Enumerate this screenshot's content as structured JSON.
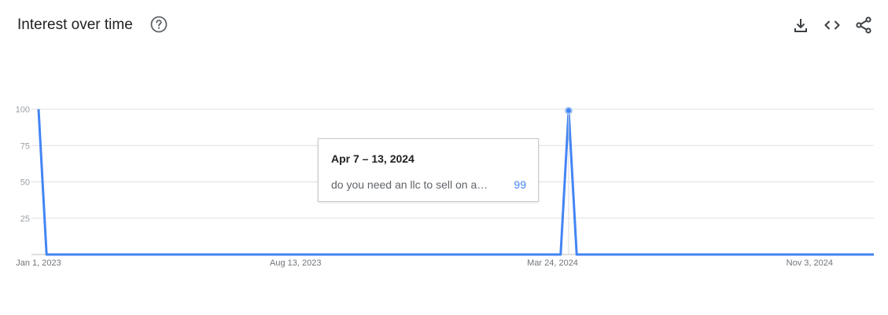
{
  "header": {
    "title": "Interest over time",
    "help_icon": "help-circle-icon",
    "actions": [
      {
        "name": "download",
        "icon": "download-icon"
      },
      {
        "name": "embed",
        "icon": "code-icon"
      },
      {
        "name": "share",
        "icon": "share-icon"
      }
    ]
  },
  "chart_data": {
    "type": "line",
    "title": "",
    "xlabel": "",
    "ylabel": "",
    "ylim": [
      0,
      100
    ],
    "yticks": [
      25,
      50,
      75,
      100
    ],
    "xticks": [
      "Jan 1, 2023",
      "Aug 13, 2023",
      "Mar 24, 2024",
      "Nov 3, 2024"
    ],
    "grid": true,
    "series": [
      {
        "name": "do you need an llc to sell on a…",
        "color": "#4285f4",
        "points": [
          {
            "x": "2023-01-01",
            "y": 100
          },
          {
            "x": "2023-01-08",
            "y": 0
          },
          {
            "x": "2024-03-31",
            "y": 0
          },
          {
            "x": "2024-04-07",
            "y": 99
          },
          {
            "x": "2024-04-14",
            "y": 0
          },
          {
            "x": "2024-12-29",
            "y": 0
          }
        ]
      }
    ],
    "highlight": {
      "x": "2024-04-07",
      "y": 99
    }
  },
  "tooltip": {
    "date": "Apr 7 – 13, 2024",
    "term": "do you need an llc to sell on a…",
    "value": "99"
  }
}
